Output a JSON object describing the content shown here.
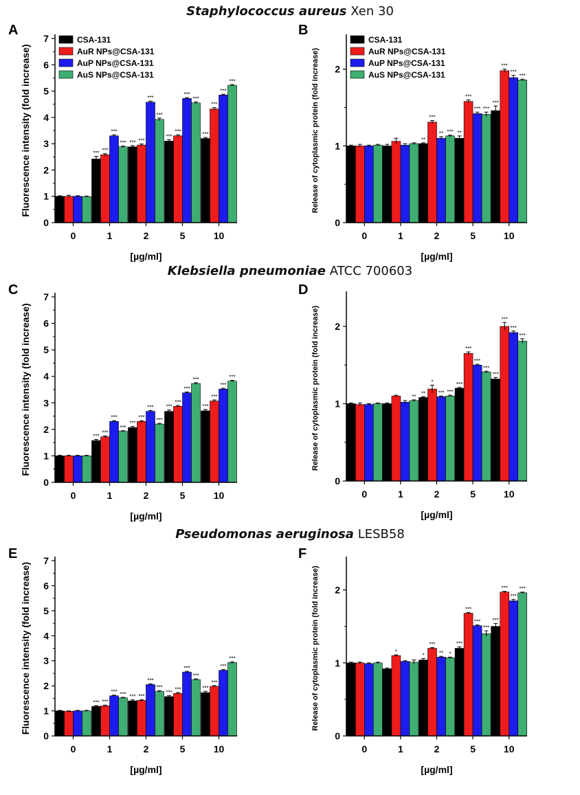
{
  "section_titles": [
    {
      "italic": "Staphylococcus aureus",
      "rest": "Xen 30"
    },
    {
      "italic": "Klebsiella pneumoniae",
      "rest": "ATCC 700603"
    },
    {
      "italic": "Pseudomonas aeruginosa",
      "rest": "LESB58"
    }
  ],
  "colors": {
    "CSA-131": "#000000",
    "AuR NPs@CSA-131": "#ee1c1c",
    "AuP NPs@CSA-131": "#1c1cee",
    "AuS NPs@CSA-131": "#3fae72"
  },
  "chart_data": [
    {
      "panel": "A",
      "type": "bar",
      "categories": [
        "0",
        "1",
        "2",
        "5",
        "10"
      ],
      "xlabel": "[µg/ml]",
      "ylabel": "Fluorescence intensity (fold increase)",
      "ylim": [
        0,
        7
      ],
      "yticks": [
        0,
        1,
        2,
        3,
        4,
        5,
        6,
        7
      ],
      "legend": "top-left",
      "series": [
        {
          "name": "CSA-131",
          "values": [
            1.0,
            2.42,
            2.88,
            3.1,
            3.2
          ],
          "errors": [
            0.02,
            0.1,
            0.05,
            0.05,
            0.04
          ],
          "sig": [
            "",
            "***",
            "***",
            "***",
            "***"
          ]
        },
        {
          "name": "AuR NPs@CSA-131",
          "values": [
            1.0,
            2.58,
            2.95,
            3.3,
            4.32
          ],
          "errors": [
            0.04,
            0.04,
            0.04,
            0.04,
            0.05
          ],
          "sig": [
            "",
            "***",
            "***",
            "***",
            "***"
          ]
        },
        {
          "name": "AuP NPs@CSA-131",
          "values": [
            1.0,
            3.3,
            4.58,
            4.72,
            4.85
          ],
          "errors": [
            0.02,
            0.04,
            0.04,
            0.03,
            0.03
          ],
          "sig": [
            "",
            "***",
            "***",
            "***",
            "***"
          ]
        },
        {
          "name": "AuS NPs@CSA-131",
          "values": [
            0.99,
            2.88,
            3.92,
            4.55,
            5.22
          ],
          "errors": [
            0.02,
            0.03,
            0.05,
            0.04,
            0.03
          ],
          "sig": [
            "",
            "***",
            "***",
            "***",
            "***"
          ]
        }
      ]
    },
    {
      "panel": "B",
      "type": "bar",
      "categories": [
        "0",
        "1",
        "2",
        "5",
        "10"
      ],
      "xlabel": "[µg/ml]",
      "ylabel": "Release of cytoplasmic protein (fold increase)",
      "ylim": [
        0,
        2.4
      ],
      "yticks": [
        0,
        1,
        2
      ],
      "legend": "top-left",
      "series": [
        {
          "name": "CSA-131",
          "values": [
            1.0,
            1.0,
            1.03,
            1.1,
            1.46
          ],
          "errors": [
            0.01,
            0.02,
            0.01,
            0.03,
            0.06
          ],
          "sig": [
            "",
            "",
            "**",
            "**",
            "***"
          ]
        },
        {
          "name": "AuR NPs@CSA-131",
          "values": [
            1.0,
            1.06,
            1.31,
            1.58,
            1.98
          ],
          "errors": [
            0.02,
            0.04,
            0.02,
            0.02,
            0.02
          ],
          "sig": [
            "",
            "",
            "***",
            "***",
            "***"
          ]
        },
        {
          "name": "AuP NPs@CSA-131",
          "values": [
            1.0,
            1.01,
            1.1,
            1.42,
            1.89
          ],
          "errors": [
            0.01,
            0.02,
            0.02,
            0.02,
            0.03
          ],
          "sig": [
            "",
            "",
            "**",
            "***",
            "***"
          ]
        },
        {
          "name": "AuS NPs@CSA-131",
          "values": [
            1.01,
            1.03,
            1.13,
            1.41,
            1.86
          ],
          "errors": [
            0.01,
            0.01,
            0.01,
            0.03,
            0.01
          ],
          "sig": [
            "",
            "",
            "***",
            "***",
            "***"
          ]
        }
      ]
    },
    {
      "panel": "C",
      "type": "bar",
      "categories": [
        "0",
        "1",
        "2",
        "5",
        "10"
      ],
      "xlabel": "[µg/ml]",
      "ylabel": "Fluorescence intensity (fold increase)",
      "ylim": [
        0,
        7
      ],
      "yticks": [
        0,
        1,
        2,
        3,
        4,
        5,
        6,
        7
      ],
      "series": [
        {
          "name": "CSA-131",
          "values": [
            1.0,
            1.58,
            2.07,
            2.68,
            2.7
          ],
          "errors": [
            0.02,
            0.04,
            0.04,
            0.05,
            0.05
          ],
          "sig": [
            "",
            "***",
            "***",
            "***",
            "***"
          ]
        },
        {
          "name": "AuR NPs@CSA-131",
          "values": [
            1.0,
            1.72,
            2.3,
            2.87,
            3.07
          ],
          "errors": [
            0.02,
            0.03,
            0.03,
            0.03,
            0.04
          ],
          "sig": [
            "",
            "***",
            "***",
            "***",
            "***"
          ]
        },
        {
          "name": "AuP NPs@CSA-131",
          "values": [
            1.0,
            2.3,
            2.68,
            3.38,
            3.52
          ],
          "errors": [
            0.02,
            0.03,
            0.03,
            0.03,
            0.03
          ],
          "sig": [
            "",
            "***",
            "***",
            "***",
            "***"
          ]
        },
        {
          "name": "AuS NPs@CSA-131",
          "values": [
            1.0,
            1.93,
            2.2,
            3.73,
            3.82
          ],
          "errors": [
            0.02,
            0.02,
            0.03,
            0.03,
            0.03
          ],
          "sig": [
            "",
            "***",
            "***",
            "***",
            "***"
          ]
        }
      ]
    },
    {
      "panel": "D",
      "type": "bar",
      "categories": [
        "0",
        "1",
        "2",
        "5",
        "10"
      ],
      "xlabel": "[µg/ml]",
      "ylabel": "Release of cytoplasmic protein (fold increase)",
      "ylim": [
        0,
        2.4
      ],
      "yticks": [
        0,
        1,
        2
      ],
      "series": [
        {
          "name": "CSA-131",
          "values": [
            1.0,
            1.0,
            1.08,
            1.2,
            1.32
          ],
          "errors": [
            0.01,
            0.01,
            0.01,
            0.01,
            0.02
          ],
          "sig": [
            "",
            "",
            "**",
            "***",
            "***"
          ]
        },
        {
          "name": "AuR NPs@CSA-131",
          "values": [
            0.99,
            1.1,
            1.19,
            1.65,
            2.0
          ],
          "errors": [
            0.02,
            0.01,
            0.05,
            0.02,
            0.05
          ],
          "sig": [
            "",
            "",
            "*",
            "***",
            "***"
          ]
        },
        {
          "name": "AuP NPs@CSA-131",
          "values": [
            0.99,
            1.02,
            1.09,
            1.5,
            1.92
          ],
          "errors": [
            0.01,
            0.02,
            0.01,
            0.01,
            0.02
          ],
          "sig": [
            "",
            "",
            "***",
            "***",
            "***"
          ]
        },
        {
          "name": "AuS NPs@CSA-131",
          "values": [
            1.0,
            1.04,
            1.1,
            1.41,
            1.81
          ],
          "errors": [
            0.01,
            0.01,
            0.01,
            0.01,
            0.03
          ],
          "sig": [
            "",
            "**",
            "***",
            "***",
            "***"
          ]
        }
      ]
    },
    {
      "panel": "E",
      "type": "bar",
      "categories": [
        "0",
        "1",
        "2",
        "5",
        "10"
      ],
      "xlabel": "[µg/ml]",
      "ylabel": "Fluorescence intensity (fold increase)",
      "ylim": [
        0,
        7
      ],
      "yticks": [
        0,
        1,
        2,
        3,
        4,
        5,
        6,
        7
      ],
      "series": [
        {
          "name": "CSA-131",
          "values": [
            1.0,
            1.18,
            1.4,
            1.57,
            1.73
          ],
          "errors": [
            0.02,
            0.03,
            0.04,
            0.04,
            0.05
          ],
          "sig": [
            "",
            "***",
            "***",
            "***",
            "***"
          ]
        },
        {
          "name": "AuR NPs@CSA-131",
          "values": [
            0.98,
            1.2,
            1.42,
            1.7,
            1.98
          ],
          "errors": [
            0.02,
            0.03,
            0.03,
            0.03,
            0.03
          ],
          "sig": [
            "",
            "***",
            "***",
            "***",
            "***"
          ]
        },
        {
          "name": "AuP NPs@CSA-131",
          "values": [
            1.0,
            1.6,
            2.05,
            2.55,
            2.62
          ],
          "errors": [
            0.02,
            0.03,
            0.03,
            0.03,
            0.03
          ],
          "sig": [
            "",
            "***",
            "***",
            "***",
            "***"
          ]
        },
        {
          "name": "AuS NPs@CSA-131",
          "values": [
            1.0,
            1.52,
            1.78,
            2.25,
            2.93
          ],
          "errors": [
            0.02,
            0.02,
            0.03,
            0.03,
            0.03
          ],
          "sig": [
            "",
            "***",
            "***",
            "***",
            "***"
          ]
        }
      ]
    },
    {
      "panel": "F",
      "type": "bar",
      "categories": [
        "0",
        "1",
        "2",
        "5",
        "10"
      ],
      "xlabel": "[µg/ml]",
      "ylabel": "Release of cytoplasmic protein (fold increase)",
      "ylim": [
        0,
        2.4
      ],
      "yticks": [
        0,
        1,
        2
      ],
      "series": [
        {
          "name": "CSA-131",
          "values": [
            1.0,
            0.92,
            1.04,
            1.2,
            1.5
          ],
          "errors": [
            0.01,
            0.01,
            0.02,
            0.02,
            0.04
          ],
          "sig": [
            "",
            "",
            "*",
            "***",
            "***"
          ]
        },
        {
          "name": "AuR NPs@CSA-131",
          "values": [
            1.0,
            1.1,
            1.2,
            1.68,
            1.97
          ],
          "errors": [
            0.01,
            0.01,
            0.01,
            0.01,
            0.01
          ],
          "sig": [
            "",
            "*",
            "***",
            "***",
            "***"
          ]
        },
        {
          "name": "AuP NPs@CSA-131",
          "values": [
            0.99,
            1.02,
            1.08,
            1.51,
            1.85
          ],
          "errors": [
            0.01,
            0.01,
            0.01,
            0.01,
            0.02
          ],
          "sig": [
            "",
            "",
            "**",
            "***",
            "***"
          ]
        },
        {
          "name": "AuS NPs@CSA-131",
          "values": [
            1.0,
            1.01,
            1.07,
            1.4,
            1.96
          ],
          "errors": [
            0.01,
            0.03,
            0.01,
            0.04,
            0.01
          ],
          "sig": [
            "",
            "",
            "*",
            "***",
            "***"
          ]
        }
      ]
    }
  ]
}
